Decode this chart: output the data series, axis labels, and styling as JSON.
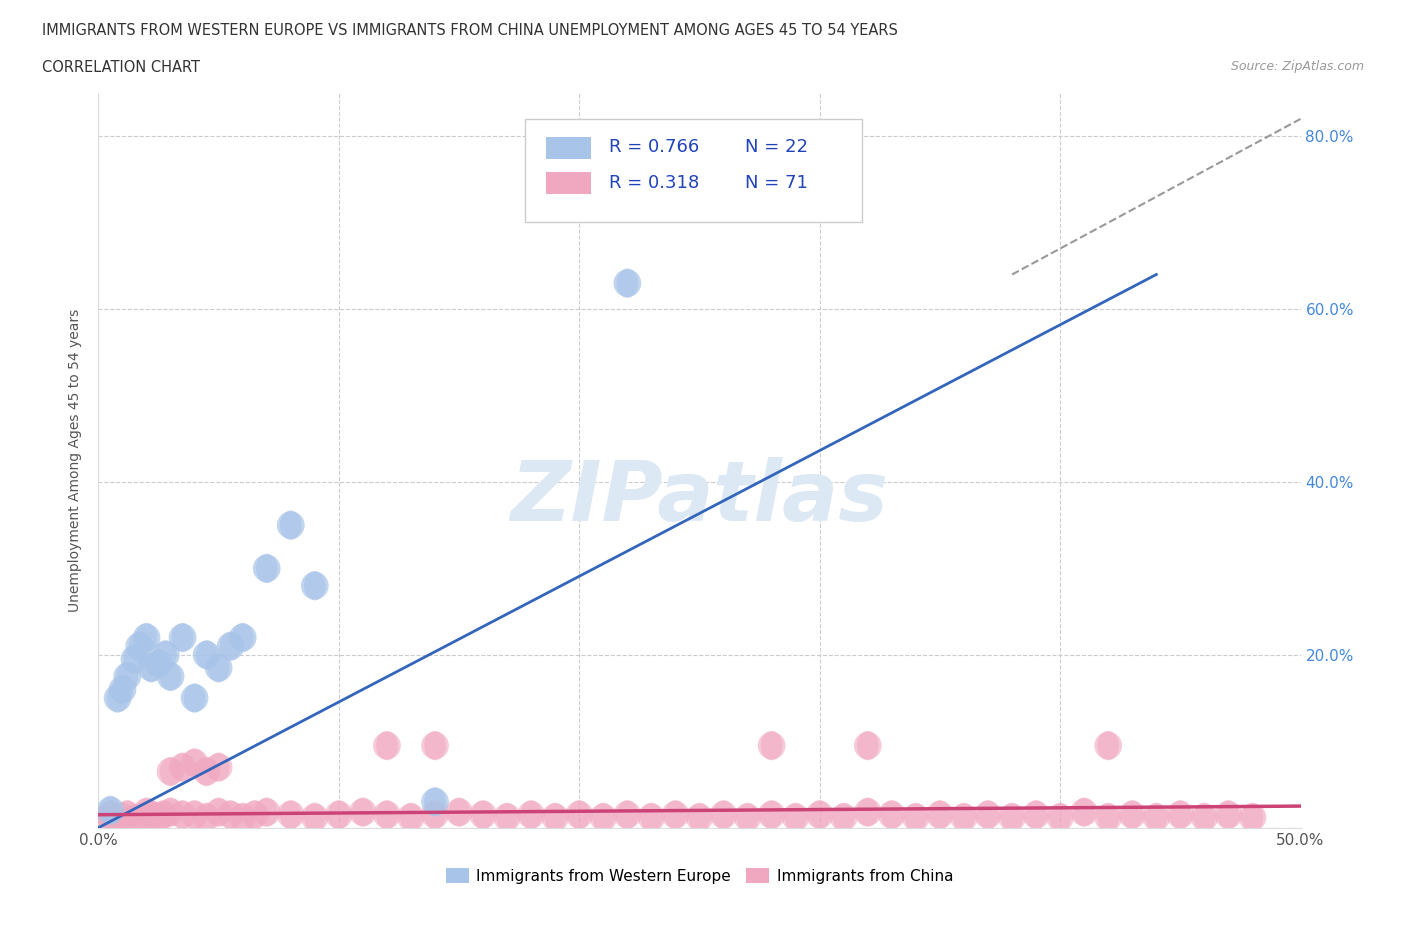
{
  "title_line1": "IMMIGRANTS FROM WESTERN EUROPE VS IMMIGRANTS FROM CHINA UNEMPLOYMENT AMONG AGES 45 TO 54 YEARS",
  "title_line2": "CORRELATION CHART",
  "source": "Source: ZipAtlas.com",
  "ylabel_text": "Unemployment Among Ages 45 to 54 years",
  "xlim": [
    0.0,
    0.5
  ],
  "ylim": [
    0.0,
    0.85
  ],
  "legend_label1": "Immigrants from Western Europe",
  "legend_label2": "Immigrants from China",
  "color_blue": "#a8c4e8",
  "color_pink": "#f0a8c0",
  "color_blue_line": "#3366bb",
  "color_pink_line": "#cc4477",
  "color_right_axis": "#4488dd",
  "color_legend_text": "#2244bb",
  "watermark": "ZIPatlas",
  "watermark_color": "#dde8f5",
  "blue_scatter_x": [
    0.005,
    0.008,
    0.01,
    0.012,
    0.015,
    0.017,
    0.02,
    0.022,
    0.025,
    0.028,
    0.03,
    0.035,
    0.04,
    0.045,
    0.05,
    0.055,
    0.06,
    0.07,
    0.08,
    0.09,
    0.14,
    0.22
  ],
  "blue_scatter_y": [
    0.02,
    0.15,
    0.16,
    0.175,
    0.195,
    0.21,
    0.22,
    0.185,
    0.19,
    0.2,
    0.175,
    0.22,
    0.15,
    0.2,
    0.185,
    0.21,
    0.22,
    0.3,
    0.35,
    0.28,
    0.03,
    0.63
  ],
  "pink_scatter_x": [
    0.003,
    0.005,
    0.007,
    0.01,
    0.012,
    0.015,
    0.018,
    0.02,
    0.022,
    0.025,
    0.027,
    0.03,
    0.035,
    0.04,
    0.045,
    0.05,
    0.055,
    0.06,
    0.065,
    0.07,
    0.08,
    0.09,
    0.1,
    0.11,
    0.12,
    0.13,
    0.14,
    0.15,
    0.16,
    0.17,
    0.18,
    0.19,
    0.2,
    0.21,
    0.22,
    0.23,
    0.24,
    0.25,
    0.26,
    0.27,
    0.28,
    0.29,
    0.3,
    0.31,
    0.32,
    0.33,
    0.34,
    0.35,
    0.36,
    0.37,
    0.38,
    0.39,
    0.4,
    0.41,
    0.42,
    0.43,
    0.44,
    0.45,
    0.46,
    0.47,
    0.48,
    0.03,
    0.035,
    0.04,
    0.045,
    0.05,
    0.12,
    0.14,
    0.28,
    0.32,
    0.42
  ],
  "pink_scatter_y": [
    0.01,
    0.015,
    0.01,
    0.012,
    0.015,
    0.01,
    0.012,
    0.018,
    0.015,
    0.012,
    0.015,
    0.018,
    0.015,
    0.015,
    0.012,
    0.018,
    0.015,
    0.012,
    0.015,
    0.018,
    0.015,
    0.012,
    0.015,
    0.018,
    0.015,
    0.012,
    0.015,
    0.018,
    0.015,
    0.012,
    0.015,
    0.012,
    0.015,
    0.012,
    0.015,
    0.012,
    0.015,
    0.012,
    0.015,
    0.012,
    0.015,
    0.012,
    0.015,
    0.012,
    0.018,
    0.015,
    0.012,
    0.015,
    0.012,
    0.015,
    0.012,
    0.015,
    0.012,
    0.018,
    0.012,
    0.015,
    0.012,
    0.015,
    0.012,
    0.015,
    0.012,
    0.065,
    0.07,
    0.075,
    0.065,
    0.07,
    0.095,
    0.095,
    0.095,
    0.095,
    0.095
  ],
  "blue_line_x": [
    0.0,
    0.44
  ],
  "blue_line_y": [
    0.0,
    0.64
  ],
  "pink_line_x": [
    0.0,
    0.5
  ],
  "pink_line_y": [
    0.015,
    0.025
  ],
  "dash_line_x": [
    0.38,
    0.5
  ],
  "dash_line_y": [
    0.64,
    0.82
  ],
  "background_color": "#ffffff",
  "grid_color": "#cccccc"
}
